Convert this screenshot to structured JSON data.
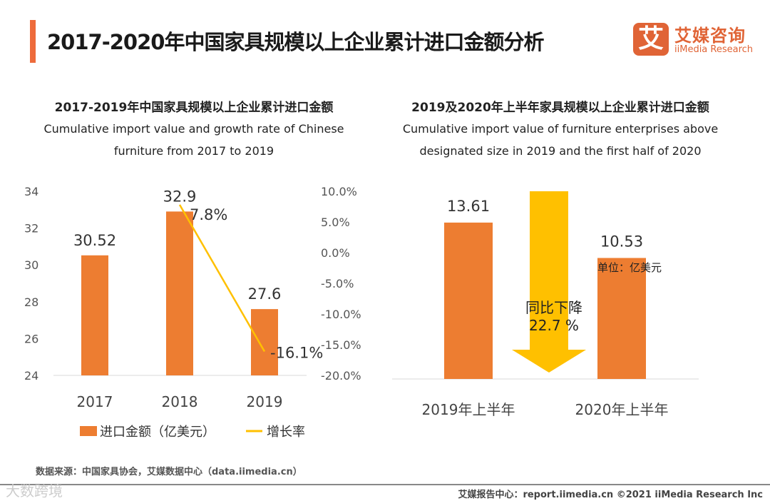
{
  "header": {
    "title": "2017-2020年中国家具规模以上企业累计进口金额分析",
    "logo_cn": "艾媒咨询",
    "logo_en": "iiMedia Research",
    "logo_mark": "艾"
  },
  "colors": {
    "accent": "#ee6b3b",
    "bar": "#ed7d31",
    "line": "#ffc000",
    "arrow": "#ffc000"
  },
  "chart_data": [
    {
      "type": "bar",
      "title": "2017-2019年中国家具规模以上企业累计进口金额",
      "subtitle_line1": "Cumulative import value and growth rate of Chinese",
      "subtitle_line2": "furniture from 2017 to 2019",
      "categories": [
        "2017",
        "2018",
        "2019"
      ],
      "series": [
        {
          "name": "进口金额（亿美元）",
          "type": "bar",
          "values": [
            30.52,
            32.9,
            27.6
          ],
          "labels": [
            "30.52",
            "32.9",
            "27.6"
          ]
        },
        {
          "name": "增长率",
          "type": "line",
          "axis": "right",
          "values": [
            null,
            7.8,
            -16.1
          ],
          "labels": [
            "",
            "7.8%",
            "-16.1%"
          ]
        }
      ],
      "ylim": [
        24,
        34
      ],
      "yticks": [
        "24",
        "26",
        "28",
        "30",
        "32",
        "34"
      ],
      "y2lim": [
        -20,
        10
      ],
      "y2ticks": [
        "-20.0%",
        "-15.0%",
        "-10.0%",
        "-5.0%",
        "0.0%",
        "5.0%",
        "10.0%"
      ],
      "legend": "bottom"
    },
    {
      "type": "bar",
      "title": "2019及2020年上半年家具规模以上企业累计进口金额",
      "subtitle_line1": "Cumulative import value of furniture enterprises above",
      "subtitle_line2": "designated size in 2019 and the first half of 2020",
      "categories": [
        "2019年上半年",
        "2020年上半年"
      ],
      "values": [
        13.61,
        10.53
      ],
      "labels": [
        "13.61",
        "10.53"
      ],
      "unit": "单位：亿美元",
      "annotation_line1": "同比下降",
      "annotation_line2": "22.7 %"
    }
  ],
  "footer": {
    "source": "数据来源：中国家具协会，艾媒数据中心（data.iimedia.cn）",
    "report": "艾媒报告中心：report.iimedia.cn  ©2021  iiMedia Research  Inc",
    "watermark": "大数跨境"
  }
}
